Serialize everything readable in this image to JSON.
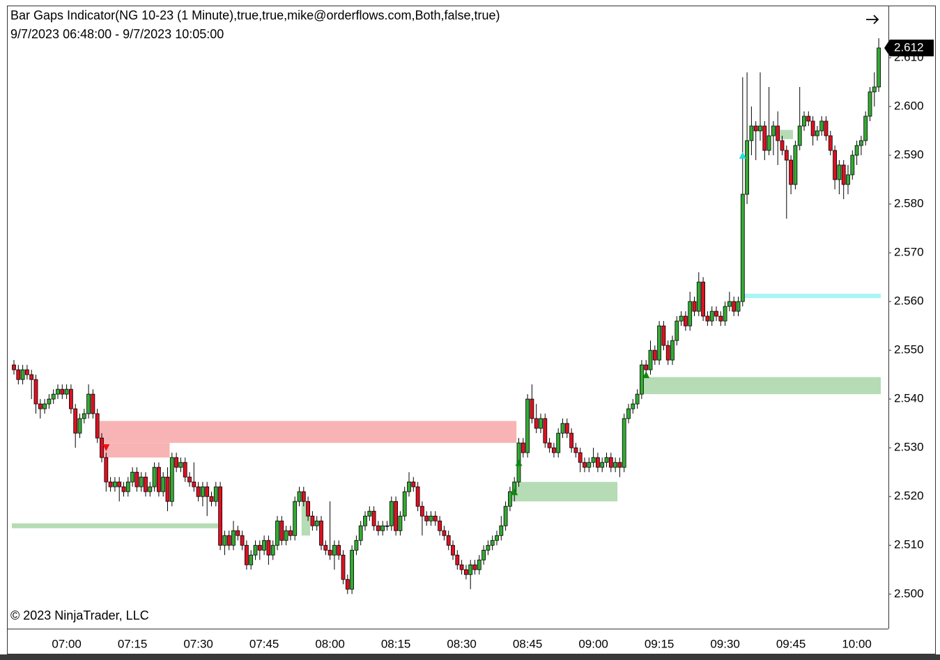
{
  "chart_data": {
    "type": "candlestick",
    "title": "Bar Gaps Indicator(NG 10-23 (1 Minute),true,true,mike@orderflows.com,Both,false,true)",
    "subtitle": "9/7/2023 06:48:00 - 9/7/2023 10:05:00",
    "footer": "© 2023 NinjaTrader, LLC",
    "up_color": "#33aa33",
    "down_color": "#dd1122",
    "categories": [
      null,
      null,
      null,
      null,
      null,
      null,
      null,
      null,
      null,
      null,
      null,
      null,
      "07:00",
      null,
      null,
      null,
      null,
      null,
      null,
      null,
      null,
      null,
      null,
      null,
      null,
      null,
      null,
      "07:15",
      null,
      null,
      null,
      null,
      null,
      null,
      null,
      null,
      null,
      null,
      null,
      null,
      null,
      null,
      "07:30",
      null,
      null,
      null,
      null,
      null,
      null,
      null,
      null,
      null,
      null,
      null,
      null,
      null,
      null,
      "07:45",
      null,
      null,
      null,
      null,
      null,
      null,
      null,
      null,
      null,
      null,
      null,
      null,
      null,
      null,
      "08:00",
      null,
      null,
      null,
      null,
      null,
      null,
      null,
      null,
      null,
      null,
      null,
      null,
      null,
      null,
      "08:15",
      null,
      null,
      null,
      null,
      null,
      null,
      null,
      null,
      null,
      null,
      null,
      null,
      null,
      null,
      "08:30",
      null,
      null,
      null,
      null,
      null,
      null,
      null,
      null,
      null,
      null,
      null,
      null,
      null,
      null,
      "08:45",
      null,
      null,
      null,
      null,
      null,
      null,
      null,
      null,
      null,
      null,
      null,
      null,
      null,
      null,
      "09:00",
      null,
      null,
      null,
      null,
      null,
      null,
      null,
      null,
      null,
      null,
      null,
      null,
      null,
      null,
      "09:15",
      null,
      null,
      null,
      null,
      null,
      null,
      null,
      null,
      null,
      null,
      null,
      null,
      null,
      null,
      "09:30",
      null,
      null,
      null,
      null,
      null,
      null,
      null,
      null,
      null,
      null,
      null,
      null,
      null,
      null,
      "09:45",
      null,
      null,
      null,
      null,
      null,
      null,
      null,
      null,
      null,
      null,
      null,
      null,
      null,
      null,
      "10:00",
      null,
      null,
      null,
      null,
      null
    ],
    "open": [
      2.547,
      2.546,
      2.544,
      2.546,
      2.545,
      2.544,
      2.539,
      2.538,
      2.539,
      2.54,
      2.541,
      2.542,
      2.541,
      2.542,
      2.538,
      2.533,
      2.536,
      2.537,
      2.541,
      2.537,
      2.532,
      2.528,
      2.523,
      2.522,
      2.523,
      2.522,
      2.521,
      2.523,
      2.525,
      2.522,
      2.524,
      2.521,
      2.522,
      2.526,
      2.521,
      2.524,
      2.519,
      2.528,
      2.526,
      2.527,
      2.524,
      2.523,
      2.522,
      2.52,
      2.522,
      2.52,
      2.519,
      2.522,
      2.51,
      2.512,
      2.51,
      2.513,
      2.512,
      2.51,
      2.506,
      2.508,
      2.51,
      2.509,
      2.511,
      2.508,
      2.51,
      2.515,
      2.511,
      2.513,
      2.512,
      2.519,
      2.521,
      2.519,
      2.516,
      2.514,
      2.515,
      2.51,
      2.509,
      2.508,
      2.51,
      2.508,
      2.503,
      2.501,
      2.509,
      2.511,
      2.514,
      2.516,
      2.517,
      2.514,
      2.513,
      2.514,
      2.514,
      2.519,
      2.513,
      2.516,
      2.521,
      2.523,
      2.522,
      2.518,
      2.516,
      2.515,
      2.516,
      2.515,
      2.513,
      2.512,
      2.51,
      2.508,
      2.506,
      2.505,
      2.504,
      2.506,
      2.505,
      2.507,
      2.509,
      2.51,
      2.511,
      2.512,
      2.514,
      2.518,
      2.521,
      2.523,
      2.531,
      2.529,
      2.54,
      2.536,
      2.534,
      2.536,
      2.531,
      2.53,
      2.529,
      2.533,
      2.535,
      2.533,
      2.53,
      2.529,
      2.527,
      2.526,
      2.527,
      2.528,
      2.526,
      2.527,
      2.528,
      2.526,
      2.527,
      2.526,
      2.536,
      2.538,
      2.539,
      2.541,
      2.547,
      2.546,
      2.55,
      2.548,
      2.555,
      2.551,
      2.548,
      2.552,
      2.556,
      2.557,
      2.555,
      2.56,
      2.558,
      2.564,
      2.557,
      2.556,
      2.558,
      2.557,
      2.556,
      2.559,
      2.56,
      2.558,
      2.56,
      2.582,
      2.593,
      2.596,
      2.595,
      2.596,
      2.591,
      2.594,
      2.596,
      2.593,
      2.591,
      2.589,
      2.584,
      2.592,
      2.596,
      2.598,
      2.597,
      2.594,
      2.595,
      2.597,
      2.594,
      2.591,
      2.585,
      2.588,
      2.584,
      2.586,
      2.59,
      2.592,
      2.593,
      2.598,
      2.603,
      2.604
    ],
    "high": [
      2.548,
      2.547,
      2.547,
      2.547,
      2.546,
      2.545,
      2.54,
      2.54,
      2.541,
      2.542,
      2.543,
      2.543,
      2.543,
      2.543,
      2.539,
      2.537,
      2.538,
      2.543,
      2.542,
      2.538,
      2.533,
      2.529,
      2.524,
      2.524,
      2.524,
      2.523,
      2.524,
      2.526,
      2.526,
      2.525,
      2.525,
      2.523,
      2.527,
      2.527,
      2.525,
      2.526,
      2.529,
      2.529,
      2.528,
      2.528,
      2.525,
      2.527,
      2.523,
      2.523,
      2.523,
      2.521,
      2.523,
      2.523,
      2.513,
      2.513,
      2.515,
      2.514,
      2.513,
      2.511,
      2.509,
      2.511,
      2.511,
      2.512,
      2.512,
      2.511,
      2.516,
      2.516,
      2.514,
      2.514,
      2.52,
      2.522,
      2.522,
      2.52,
      2.517,
      2.516,
      2.516,
      2.511,
      2.519,
      2.511,
      2.511,
      2.509,
      2.504,
      2.51,
      2.512,
      2.515,
      2.517,
      2.518,
      2.518,
      2.515,
      2.515,
      2.515,
      2.52,
      2.52,
      2.517,
      2.522,
      2.525,
      2.524,
      2.523,
      2.519,
      2.517,
      2.517,
      2.517,
      2.516,
      2.514,
      2.513,
      2.511,
      2.509,
      2.507,
      2.506,
      2.507,
      2.507,
      2.508,
      2.51,
      2.511,
      2.512,
      2.513,
      2.516,
      2.519,
      2.522,
      2.524,
      2.532,
      2.532,
      2.541,
      2.543,
      2.539,
      2.537,
      2.537,
      2.532,
      2.531,
      2.534,
      2.536,
      2.536,
      2.534,
      2.531,
      2.53,
      2.528,
      2.528,
      2.53,
      2.529,
      2.528,
      2.529,
      2.529,
      2.528,
      2.528,
      2.537,
      2.539,
      2.54,
      2.542,
      2.548,
      2.548,
      2.552,
      2.551,
      2.556,
      2.556,
      2.552,
      2.553,
      2.557,
      2.558,
      2.558,
      2.562,
      2.561,
      2.566,
      2.565,
      2.558,
      2.559,
      2.559,
      2.558,
      2.56,
      2.562,
      2.561,
      2.561,
      2.606,
      2.607,
      2.6,
      2.597,
      2.607,
      2.597,
      2.604,
      2.597,
      2.599,
      2.594,
      2.592,
      2.59,
      2.593,
      2.604,
      2.599,
      2.599,
      2.598,
      2.596,
      2.598,
      2.598,
      2.595,
      2.592,
      2.589,
      2.589,
      2.588,
      2.591,
      2.593,
      2.594,
      2.599,
      2.604,
      2.607,
      2.614
    ],
    "low": [
      2.545,
      2.543,
      2.543,
      2.544,
      2.54,
      2.537,
      2.536,
      2.537,
      2.538,
      2.539,
      2.54,
      2.54,
      2.54,
      2.537,
      2.53,
      2.532,
      2.535,
      2.536,
      2.536,
      2.531,
      2.527,
      2.521,
      2.521,
      2.521,
      2.519,
      2.52,
      2.52,
      2.522,
      2.521,
      2.521,
      2.52,
      2.52,
      2.521,
      2.52,
      2.52,
      2.517,
      2.518,
      2.525,
      2.525,
      2.523,
      2.522,
      2.521,
      2.519,
      2.518,
      2.516,
      2.518,
      2.518,
      2.509,
      2.508,
      2.509,
      2.509,
      2.511,
      2.509,
      2.505,
      2.505,
      2.507,
      2.507,
      2.508,
      2.506,
      2.507,
      2.509,
      2.51,
      2.51,
      2.511,
      2.511,
      2.518,
      2.518,
      2.515,
      2.513,
      2.513,
      2.509,
      2.508,
      2.507,
      2.505,
      2.507,
      2.502,
      2.5,
      2.5,
      2.508,
      2.51,
      2.513,
      2.515,
      2.513,
      2.512,
      2.512,
      2.513,
      2.513,
      2.512,
      2.512,
      2.515,
      2.52,
      2.521,
      2.517,
      2.512,
      2.514,
      2.514,
      2.514,
      2.512,
      2.511,
      2.509,
      2.507,
      2.505,
      2.504,
      2.503,
      2.501,
      2.504,
      2.504,
      2.506,
      2.508,
      2.509,
      2.51,
      2.511,
      2.513,
      2.517,
      2.519,
      2.522,
      2.528,
      2.528,
      2.535,
      2.533,
      2.533,
      2.53,
      2.529,
      2.528,
      2.528,
      2.532,
      2.532,
      2.529,
      2.528,
      2.525,
      2.525,
      2.525,
      2.526,
      2.525,
      2.525,
      2.526,
      2.525,
      2.525,
      2.524,
      2.525,
      2.535,
      2.537,
      2.538,
      2.54,
      2.545,
      2.545,
      2.547,
      2.547,
      2.55,
      2.547,
      2.547,
      2.551,
      2.555,
      2.554,
      2.554,
      2.557,
      2.557,
      2.556,
      2.555,
      2.555,
      2.556,
      2.555,
      2.555,
      2.558,
      2.557,
      2.557,
      2.559,
      2.58,
      2.59,
      2.589,
      2.593,
      2.589,
      2.59,
      2.59,
      2.588,
      2.59,
      2.577,
      2.582,
      2.583,
      2.591,
      2.595,
      2.596,
      2.592,
      2.593,
      2.594,
      2.593,
      2.59,
      2.583,
      2.582,
      2.581,
      2.582,
      2.585,
      2.588,
      2.59,
      2.592,
      2.597,
      2.6,
      2.603
    ],
    "close": [
      2.546,
      2.544,
      2.546,
      2.545,
      2.544,
      2.539,
      2.538,
      2.539,
      2.54,
      2.541,
      2.542,
      2.541,
      2.542,
      2.538,
      2.533,
      2.536,
      2.537,
      2.541,
      2.537,
      2.532,
      2.528,
      2.523,
      2.522,
      2.523,
      2.522,
      2.521,
      2.523,
      2.525,
      2.522,
      2.524,
      2.521,
      2.522,
      2.526,
      2.521,
      2.524,
      2.519,
      2.528,
      2.526,
      2.527,
      2.524,
      2.523,
      2.522,
      2.52,
      2.522,
      2.52,
      2.519,
      2.522,
      2.51,
      2.512,
      2.51,
      2.513,
      2.512,
      2.51,
      2.506,
      2.508,
      2.51,
      2.509,
      2.511,
      2.508,
      2.51,
      2.515,
      2.511,
      2.513,
      2.512,
      2.519,
      2.521,
      2.519,
      2.516,
      2.514,
      2.515,
      2.51,
      2.509,
      2.508,
      2.51,
      2.508,
      2.503,
      2.501,
      2.509,
      2.511,
      2.514,
      2.516,
      2.517,
      2.514,
      2.513,
      2.514,
      2.514,
      2.519,
      2.513,
      2.516,
      2.521,
      2.523,
      2.522,
      2.518,
      2.516,
      2.515,
      2.516,
      2.515,
      2.513,
      2.512,
      2.51,
      2.508,
      2.506,
      2.505,
      2.504,
      2.506,
      2.505,
      2.507,
      2.509,
      2.51,
      2.511,
      2.512,
      2.514,
      2.518,
      2.521,
      2.523,
      2.531,
      2.529,
      2.54,
      2.536,
      2.534,
      2.536,
      2.531,
      2.53,
      2.529,
      2.533,
      2.535,
      2.533,
      2.53,
      2.529,
      2.527,
      2.526,
      2.527,
      2.528,
      2.526,
      2.527,
      2.528,
      2.526,
      2.527,
      2.526,
      2.536,
      2.538,
      2.539,
      2.541,
      2.547,
      2.546,
      2.55,
      2.548,
      2.555,
      2.551,
      2.548,
      2.552,
      2.556,
      2.557,
      2.555,
      2.56,
      2.558,
      2.564,
      2.557,
      2.556,
      2.558,
      2.557,
      2.556,
      2.559,
      2.56,
      2.558,
      2.56,
      2.582,
      2.593,
      2.596,
      2.595,
      2.596,
      2.591,
      2.594,
      2.596,
      2.593,
      2.591,
      2.589,
      2.584,
      2.592,
      2.596,
      2.598,
      2.597,
      2.594,
      2.595,
      2.597,
      2.594,
      2.591,
      2.585,
      2.588,
      2.584,
      2.586,
      2.59,
      2.592,
      2.593,
      2.598,
      2.603,
      2.604,
      2.612
    ],
    "ylim": [
      2.4929,
      2.6207
    ],
    "yticks": [
      {
        "value": 2.5,
        "label": "2.500"
      },
      {
        "value": 2.51,
        "label": "2.510"
      },
      {
        "value": 2.52,
        "label": "2.520"
      },
      {
        "value": 2.53,
        "label": "2.530"
      },
      {
        "value": 2.54,
        "label": "2.540"
      },
      {
        "value": 2.55,
        "label": "2.550"
      },
      {
        "value": 2.56,
        "label": "2.560"
      },
      {
        "value": 2.57,
        "label": "2.570"
      },
      {
        "value": 2.58,
        "label": "2.580"
      },
      {
        "value": 2.59,
        "label": "2.590"
      },
      {
        "value": 2.6,
        "label": "2.600"
      },
      {
        "value": 2.61,
        "label": "2.610"
      }
    ],
    "zones": [
      {
        "color": "#f8b4b4",
        "low": 2.531,
        "high": 2.5355,
        "start": 20,
        "end": 114
      },
      {
        "color": "#f8b4b4",
        "low": 2.528,
        "high": 2.531,
        "start": 20,
        "end": 35
      },
      {
        "color": "#b5dcb5",
        "low": 2.5135,
        "high": 2.5145,
        "start": 0,
        "end": 46
      },
      {
        "color": "#b5dcb5",
        "low": 2.512,
        "high": 2.519,
        "start": 66,
        "end": 67
      },
      {
        "color": "#b5dcb5",
        "low": 2.519,
        "high": 2.523,
        "start": 114,
        "end": 137
      },
      {
        "color": "#b5dcb5",
        "low": 2.541,
        "high": 2.5445,
        "start": 143,
        "end": 197
      },
      {
        "color": "#aaf5f5",
        "low": 2.5607,
        "high": 2.5616,
        "start": 166,
        "end": 197
      },
      {
        "color": "#b5dcb5",
        "low": 2.5933,
        "high": 2.5952,
        "start": 175,
        "end": 177
      }
    ],
    "markers": [
      {
        "index": 21,
        "value": 2.53,
        "direction": "down",
        "color": "#ee1111"
      },
      {
        "index": 114,
        "value": 2.521,
        "direction": "up",
        "color": "#118811"
      },
      {
        "index": 115,
        "value": 2.527,
        "direction": "up",
        "color": "#118811"
      },
      {
        "index": 144,
        "value": 2.545,
        "direction": "up",
        "color": "#118811"
      },
      {
        "index": 166,
        "value": 2.59,
        "direction": "up",
        "color": "#22dddd"
      }
    ]
  }
}
